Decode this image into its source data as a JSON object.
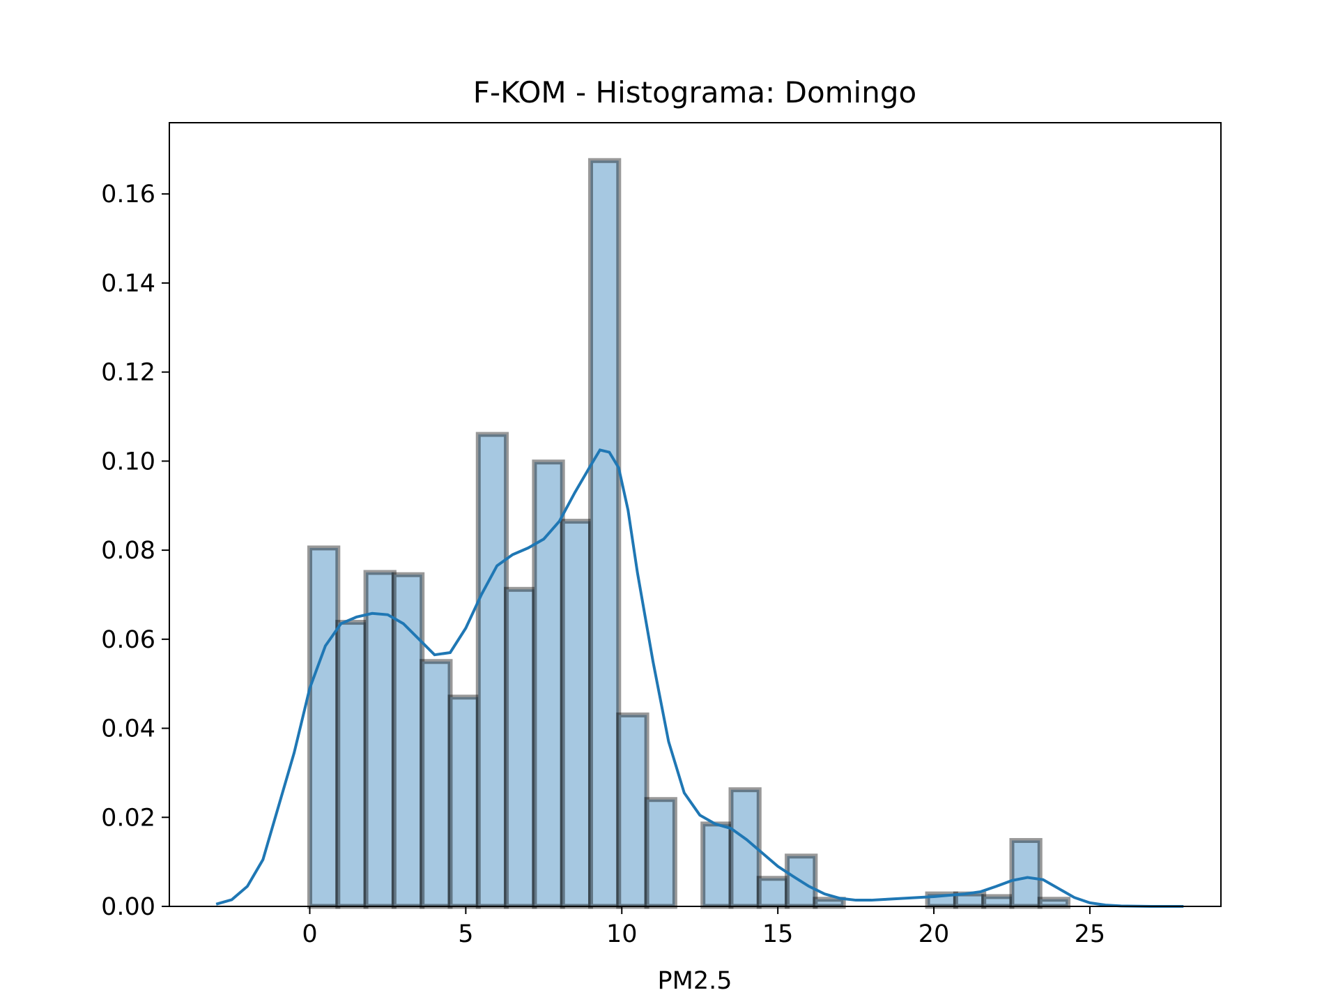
{
  "chart_data": {
    "type": "bar",
    "title": "F-KOM - Histograma: Domingo",
    "xlabel": "PM2.5",
    "ylabel": "",
    "xlim": [
      -4.5,
      29.2
    ],
    "ylim": [
      0,
      0.176
    ],
    "x_ticks": [
      0,
      5,
      10,
      15,
      20,
      25
    ],
    "x_tick_labels": [
      "0",
      "5",
      "10",
      "15",
      "20",
      "25"
    ],
    "y_ticks": [
      0,
      0.02,
      0.04,
      0.06,
      0.08,
      0.1,
      0.12,
      0.14,
      0.16
    ],
    "y_tick_labels": [
      "0.00",
      "0.02",
      "0.04",
      "0.06",
      "0.08",
      "0.10",
      "0.12",
      "0.14",
      "0.16"
    ],
    "grid": false,
    "bins": {
      "edges": [
        0,
        0.9,
        1.8,
        2.7,
        3.6,
        4.5,
        5.4,
        6.3,
        7.2,
        8.1,
        9.0,
        9.9,
        10.8,
        11.7,
        12.6,
        13.5,
        14.4,
        15.3,
        16.2,
        17.1,
        18.0,
        18.9,
        19.8,
        20.7,
        21.6,
        22.5,
        23.4,
        24.3
      ],
      "density": [
        0.0805,
        0.0638,
        0.075,
        0.0745,
        0.055,
        0.047,
        0.106,
        0.0712,
        0.0998,
        0.0865,
        0.1675,
        0.043,
        0.024,
        0.0,
        0.0185,
        0.0262,
        0.0063,
        0.0113,
        0.0016,
        0.0,
        0.0,
        0.0,
        0.0028,
        0.0028,
        0.0022,
        0.0148,
        0.0016
      ]
    },
    "kde": {
      "name": "",
      "x": [
        -3.0,
        -2.5,
        -2.0,
        -1.5,
        -1.0,
        -0.5,
        0.0,
        0.5,
        1.0,
        1.5,
        2.0,
        2.5,
        3.0,
        3.5,
        4.0,
        4.5,
        5.0,
        5.5,
        6.0,
        6.5,
        7.0,
        7.5,
        8.0,
        8.5,
        9.0,
        9.3,
        9.6,
        9.9,
        10.2,
        10.5,
        11.0,
        11.5,
        12.0,
        12.5,
        13.0,
        13.5,
        14.0,
        14.5,
        15.0,
        15.5,
        16.0,
        16.5,
        17.0,
        17.5,
        18.0,
        18.5,
        19.0,
        19.5,
        20.0,
        20.5,
        21.0,
        21.5,
        22.0,
        22.5,
        23.0,
        23.5,
        24.0,
        24.5,
        25.0,
        25.5,
        26.0,
        27.0,
        28.0
      ],
      "y": [
        0.0005,
        0.0015,
        0.0045,
        0.0105,
        0.0225,
        0.0345,
        0.049,
        0.0585,
        0.0635,
        0.065,
        0.0658,
        0.0655,
        0.0635,
        0.06,
        0.0565,
        0.057,
        0.0625,
        0.07,
        0.0765,
        0.079,
        0.0805,
        0.0825,
        0.0865,
        0.093,
        0.099,
        0.1025,
        0.102,
        0.0985,
        0.089,
        0.075,
        0.055,
        0.037,
        0.0255,
        0.0205,
        0.0185,
        0.0175,
        0.015,
        0.012,
        0.009,
        0.0067,
        0.0045,
        0.0028,
        0.0018,
        0.0014,
        0.0014,
        0.0016,
        0.0018,
        0.002,
        0.0022,
        0.0025,
        0.0028,
        0.0033,
        0.0045,
        0.0058,
        0.0065,
        0.006,
        0.004,
        0.002,
        0.0008,
        0.0003,
        0.0001,
        0.0,
        0.0
      ]
    },
    "colors": {
      "bar_fill": "#a6c8e1",
      "bar_edge": "#000000",
      "kde_line": "#1f77b4",
      "axes": "#000000"
    }
  }
}
